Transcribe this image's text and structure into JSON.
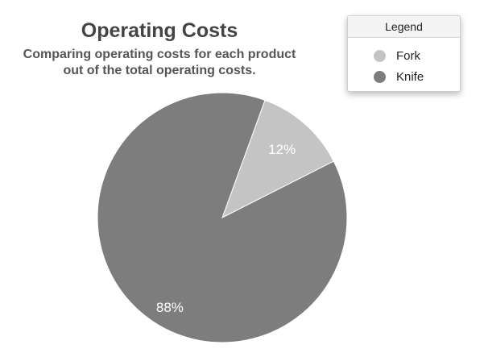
{
  "chart_data": {
    "type": "pie",
    "title": "Operating Costs",
    "subtitle_lines": [
      "Comparing operating costs for each product",
      "out of the total operating costs."
    ],
    "legend": {
      "title": "Legend",
      "placement": "top-right"
    },
    "slices": [
      {
        "name": "Fork",
        "value": 12,
        "label": "12%",
        "color": "#c4c4c4"
      },
      {
        "name": "Knife",
        "value": 88,
        "label": "88%",
        "color": "#7d7d7d"
      }
    ]
  }
}
